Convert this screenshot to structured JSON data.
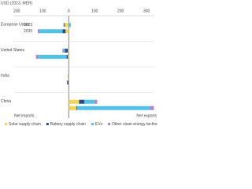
{
  "chart_data": {
    "type": "stacked-bar-horizontal",
    "title": "USD (2023, MER)",
    "categories": [
      "European Union",
      "United States",
      "India",
      "China"
    ],
    "years": [
      "2023",
      "2035"
    ],
    "series": [
      {
        "name": "Solar supply chain",
        "color": "#f2d64b",
        "values": [
          [
            -15,
            -12
          ],
          [
            -3,
            -3
          ],
          [
            -2,
            -1
          ],
          [
            40,
            30
          ]
        ]
      },
      {
        "name": "Battery supply chain",
        "color": "#2e4a8c",
        "values": [
          [
            -3,
            -12
          ],
          [
            -12,
            -5
          ],
          [
            -1,
            -5
          ],
          [
            20,
            3
          ]
        ]
      },
      {
        "name": "EVs",
        "color": "#4dc3ec",
        "values": [
          [
            8,
            -90
          ],
          [
            -5,
            -110
          ],
          [
            0,
            0
          ],
          [
            40,
            280
          ]
        ]
      },
      {
        "name": "Other clean energy technologies",
        "color": "#b57fc9",
        "values": [
          [
            -2,
            -5
          ],
          [
            -4,
            -8
          ],
          [
            0,
            -1
          ],
          [
            10,
            15
          ]
        ]
      }
    ],
    "xlim": [
      -210,
      330
    ],
    "xticks": [
      {
        "value": -200,
        "label": "200"
      },
      {
        "value": -100,
        "label": "100"
      },
      0,
      100,
      200,
      300
    ],
    "left_note": "Net imports",
    "right_note": "Net exports",
    "grid": true
  }
}
